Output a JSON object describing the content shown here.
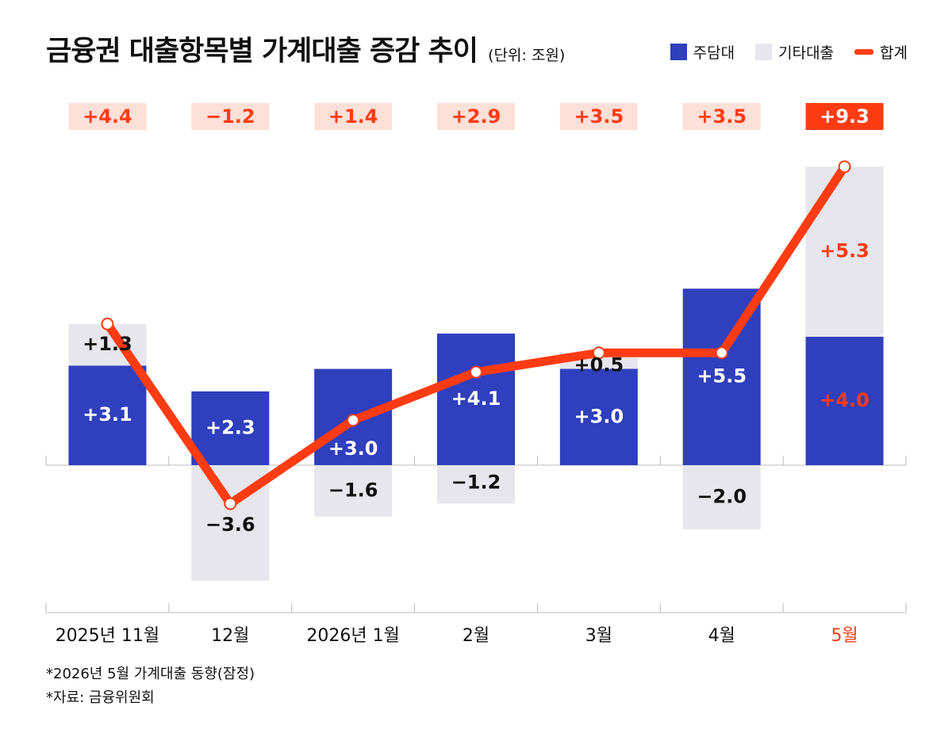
{
  "title": "금융권 대출항목별 가계대출 증감 추이",
  "unit": "(단위: 조원)",
  "legend": [
    {
      "label": "주담대",
      "color": "#2f3fbd",
      "kind": "bar"
    },
    {
      "label": "기타대출",
      "color": "#e6e6ec",
      "kind": "bar"
    },
    {
      "label": "합계",
      "color": "#ff3b12",
      "kind": "line"
    }
  ],
  "colors": {
    "mortgage": "#2f3fbd",
    "other": "#e6e6ec",
    "total": "#ff3b12",
    "total_box_bg": "#fde0d8"
  },
  "chart_data": {
    "type": "bar",
    "stacked": true,
    "categories": [
      "2025년 11월",
      "12월",
      "2026년 1월",
      "2월",
      "3월",
      "4월",
      "5월"
    ],
    "series": [
      {
        "name": "주담대",
        "values": [
          3.1,
          2.3,
          3.0,
          4.1,
          3.0,
          5.5,
          4.0
        ],
        "labels": [
          "+3.1",
          "+2.3",
          "+3.0",
          "+4.1",
          "+3.0",
          "+5.5",
          "+4.0"
        ]
      },
      {
        "name": "기타대출",
        "values": [
          1.3,
          -3.6,
          -1.6,
          -1.2,
          0.5,
          -2.0,
          5.3
        ],
        "labels": [
          "+1.3",
          "−3.6",
          "−1.6",
          "−1.2",
          "+0.5",
          "−2.0",
          "+5.3"
        ]
      },
      {
        "name": "합계",
        "type": "line",
        "values": [
          4.4,
          -1.2,
          1.4,
          2.9,
          3.5,
          3.5,
          9.3
        ],
        "labels": [
          "+4.4",
          "−1.2",
          "+1.4",
          "+2.9",
          "+3.5",
          "+3.5",
          "+9.3"
        ]
      }
    ],
    "highlight_index": 6
  },
  "notes": [
    "*2026년 5월 가계대출 동향(잠정)",
    "*자료: 금융위원회"
  ]
}
